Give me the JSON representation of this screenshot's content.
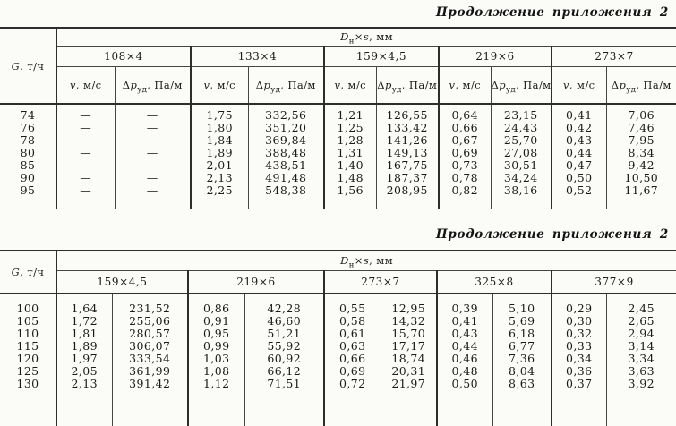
{
  "titles": [
    "Продолжение приложения 2",
    "Продолжение приложения 2"
  ],
  "tables": [
    {
      "name": "upper-table",
      "g_label": [
        [
          "i",
          "G"
        ],
        [
          "n",
          ". т/ч"
        ]
      ],
      "d_label": [
        [
          "i",
          "D"
        ],
        [
          "sub",
          "н"
        ],
        [
          "n",
          "×"
        ],
        [
          "i",
          "s"
        ],
        [
          "n",
          ", мм"
        ]
      ],
      "sizes": [
        "108×4",
        "133×4",
        "159×4,5",
        "219×6",
        "273×7"
      ],
      "v_label": [
        [
          "i",
          "v"
        ],
        [
          "n",
          ", м/с"
        ]
      ],
      "dp_label": [
        [
          "n",
          "Δ"
        ],
        [
          "i",
          "p"
        ],
        [
          "sub",
          "уд"
        ],
        [
          "n",
          ", Па/м"
        ]
      ],
      "has_subheader": true,
      "rows": [
        [
          "74",
          "—",
          "—",
          "1,75",
          "332,56",
          "1,21",
          "126,55",
          "0,64",
          "23,15",
          "0,41",
          "7,06"
        ],
        [
          "76",
          "—",
          "—",
          "1,80",
          "351,20",
          "1,25",
          "133,42",
          "0,66",
          "24,43",
          "0,42",
          "7,46"
        ],
        [
          "78",
          "—",
          "—",
          "1,84",
          "369,84",
          "1,28",
          "141,26",
          "0,67",
          "25,70",
          "0,43",
          "7,95"
        ],
        [
          "80",
          "—",
          "—",
          "1,89",
          "388,48",
          "1,31",
          "149,13",
          "0,69",
          "27,08",
          "0,44",
          "8,34"
        ],
        [
          "85",
          "—",
          "—",
          "2,01",
          "438,51",
          "1,40",
          "167,75",
          "0,73",
          "30,51",
          "0,47",
          "9,42"
        ],
        [
          "90",
          "—",
          "—",
          "2,13",
          "491,48",
          "1,48",
          "187,37",
          "0,78",
          "34,24",
          "0,50",
          "10,50"
        ],
        [
          "95",
          "—",
          "—",
          "2,25",
          "548,38",
          "1,56",
          "208,95",
          "0,82",
          "38,16",
          "0,52",
          "11,67"
        ]
      ]
    },
    {
      "name": "lower-table",
      "g_label": [
        [
          "i",
          "G"
        ],
        [
          "n",
          ", т/ч"
        ]
      ],
      "d_label": [
        [
          "i",
          "D"
        ],
        [
          "sub",
          "н"
        ],
        [
          "n",
          "×"
        ],
        [
          "i",
          "s"
        ],
        [
          "n",
          ", мм"
        ]
      ],
      "sizes": [
        "159×4,5",
        "219×6",
        "273×7",
        "325×8",
        "377×9"
      ],
      "has_subheader": false,
      "rows": [
        [
          "100",
          "1,64",
          "231,52",
          "0,86",
          "42,28",
          "0,55",
          "12,95",
          "0,39",
          "5,10",
          "0,29",
          "2,45"
        ],
        [
          "105",
          "1,72",
          "255,06",
          "0,91",
          "46,60",
          "0,58",
          "14,32",
          "0,41",
          "5,69",
          "0,30",
          "2,65"
        ],
        [
          "110",
          "1,81",
          "280,57",
          "0,95",
          "51,21",
          "0,61",
          "15,70",
          "0,43",
          "6,18",
          "0,32",
          "2,94"
        ],
        [
          "115",
          "1,89",
          "306,07",
          "0,99",
          "55,92",
          "0,63",
          "17,17",
          "0,44",
          "6,77",
          "0,33",
          "3,14"
        ],
        [
          "120",
          "1,97",
          "333,54",
          "1,03",
          "60,92",
          "0,66",
          "18,74",
          "0,46",
          "7,36",
          "0,34",
          "3,34"
        ],
        [
          "125",
          "2,05",
          "361,99",
          "1,08",
          "66,12",
          "0,69",
          "20,31",
          "0,48",
          "8,04",
          "0,36",
          "3,63"
        ],
        [
          "130",
          "2,13",
          "391,42",
          "1,12",
          "71,51",
          "0,72",
          "21,97",
          "0,50",
          "8,63",
          "0,37",
          "3,92"
        ]
      ]
    }
  ]
}
